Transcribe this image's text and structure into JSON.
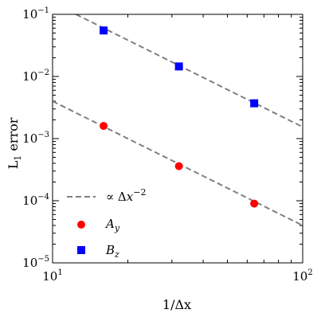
{
  "chart_data": {
    "type": "scatter",
    "xlabel": "1/Δx",
    "ylabel": "L",
    "ylabel_sub": "1",
    "ylabel_suffix": " error",
    "x_scale": "log",
    "y_scale": "log",
    "xlim": [
      10,
      100
    ],
    "ylim": [
      1e-05,
      0.1
    ],
    "x_ticks": [
      {
        "value": 10,
        "base": "10",
        "exp": "1"
      },
      {
        "value": 100,
        "base": "10",
        "exp": "2"
      }
    ],
    "y_ticks": [
      {
        "value": 1e-05,
        "base": "10",
        "exp": "−5"
      },
      {
        "value": 0.0001,
        "base": "10",
        "exp": "−4"
      },
      {
        "value": 0.001,
        "base": "10",
        "exp": "−3"
      },
      {
        "value": 0.01,
        "base": "10",
        "exp": "−2"
      },
      {
        "value": 0.1,
        "base": "10",
        "exp": "−1"
      }
    ],
    "grid": false,
    "legend_position": "bottom-left",
    "series": [
      {
        "name": "A",
        "name_sub": "y",
        "marker": "circle",
        "color": "#ff0000",
        "x": [
          16,
          32,
          64
        ],
        "y": [
          0.0016,
          0.00036,
          9e-05
        ]
      },
      {
        "name": "B",
        "name_sub": "z",
        "marker": "square",
        "color": "#0000ff",
        "x": [
          16,
          32,
          64
        ],
        "y": [
          0.055,
          0.0145,
          0.0037
        ]
      }
    ],
    "reference_lines": [
      {
        "label_prefix": "∝ Δ",
        "label_var": "x",
        "label_exp": "−2",
        "color": "#808080",
        "style": "dashed",
        "x": [
          10,
          100
        ],
        "y": [
          0.004,
          4e-05
        ]
      },
      {
        "color": "#808080",
        "style": "dashed",
        "x": [
          12.4,
          100
        ],
        "y": [
          0.1,
          0.00154
        ]
      }
    ]
  }
}
